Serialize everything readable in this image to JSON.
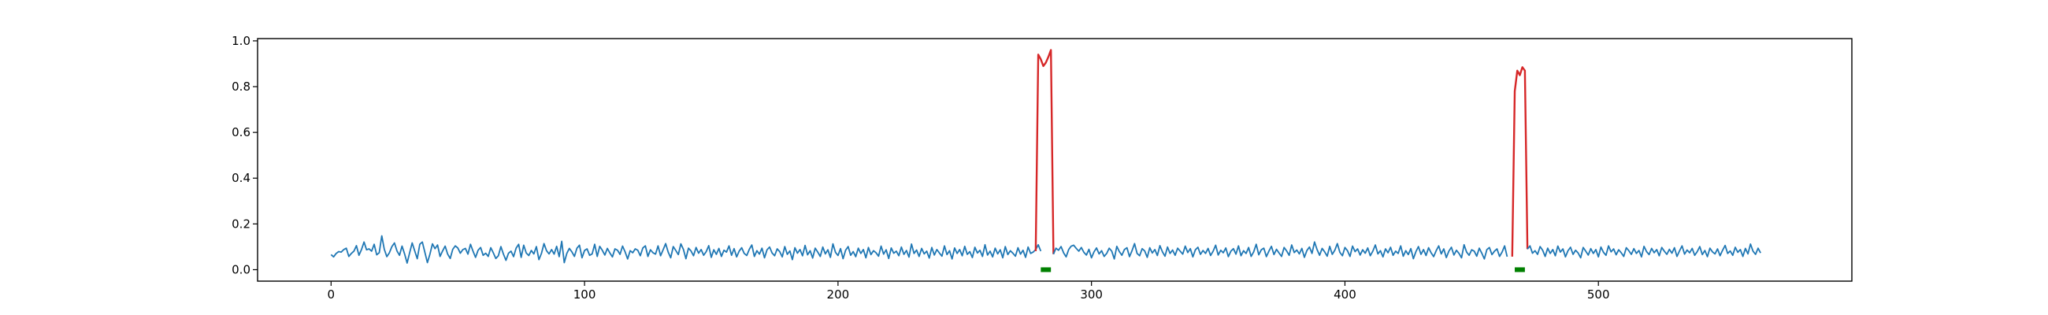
{
  "chart_data": {
    "type": "line",
    "title": "",
    "xlabel": "",
    "ylabel": "",
    "xlim": [
      -29,
      600
    ],
    "ylim": [
      -0.05,
      1.01
    ],
    "x_ticks": [
      0,
      100,
      200,
      300,
      400,
      500
    ],
    "x_tick_labels": [
      "0",
      "100",
      "200",
      "300",
      "400",
      "500"
    ],
    "y_ticks": [
      0.0,
      0.2,
      0.4,
      0.6,
      0.8,
      1.0
    ],
    "y_tick_labels": [
      "0.0",
      "0.2",
      "0.4",
      "0.6",
      "0.8",
      "1.0"
    ],
    "grid": false,
    "legend": "none",
    "series": [
      {
        "color": "#1f77b4",
        "style": "line",
        "x_start": 0,
        "x_step": 1,
        "values": [
          0.066,
          0.056,
          0.071,
          0.079,
          0.077,
          0.088,
          0.094,
          0.058,
          0.071,
          0.081,
          0.105,
          0.063,
          0.088,
          0.121,
          0.087,
          0.091,
          0.081,
          0.111,
          0.065,
          0.074,
          0.148,
          0.089,
          0.057,
          0.074,
          0.101,
          0.117,
          0.082,
          0.063,
          0.103,
          0.069,
          0.029,
          0.074,
          0.117,
          0.082,
          0.048,
          0.111,
          0.121,
          0.076,
          0.031,
          0.068,
          0.113,
          0.092,
          0.108,
          0.058,
          0.082,
          0.103,
          0.068,
          0.049,
          0.089,
          0.104,
          0.095,
          0.072,
          0.088,
          0.093,
          0.068,
          0.111,
          0.081,
          0.054,
          0.085,
          0.097,
          0.063,
          0.072,
          0.058,
          0.096,
          0.074,
          0.049,
          0.061,
          0.101,
          0.068,
          0.041,
          0.072,
          0.081,
          0.057,
          0.094,
          0.111,
          0.054,
          0.107,
          0.073,
          0.062,
          0.084,
          0.069,
          0.101,
          0.044,
          0.071,
          0.114,
          0.083,
          0.069,
          0.088,
          0.068,
          0.102,
          0.057,
          0.124,
          0.031,
          0.071,
          0.093,
          0.078,
          0.058,
          0.094,
          0.107,
          0.052,
          0.084,
          0.091,
          0.063,
          0.069,
          0.111,
          0.058,
          0.102,
          0.085,
          0.064,
          0.093,
          0.073,
          0.056,
          0.091,
          0.085,
          0.067,
          0.103,
          0.078,
          0.047,
          0.083,
          0.074,
          0.091,
          0.085,
          0.061,
          0.095,
          0.104,
          0.058,
          0.087,
          0.074,
          0.068,
          0.104,
          0.061,
          0.087,
          0.114,
          0.077,
          0.052,
          0.101,
          0.084,
          0.066,
          0.113,
          0.089,
          0.048,
          0.094,
          0.082,
          0.061,
          0.097,
          0.072,
          0.088,
          0.063,
          0.079,
          0.105,
          0.054,
          0.087,
          0.067,
          0.093,
          0.058,
          0.085,
          0.077,
          0.104,
          0.063,
          0.092,
          0.056,
          0.081,
          0.096,
          0.071,
          0.062,
          0.089,
          0.108,
          0.058,
          0.083,
          0.068,
          0.094,
          0.052,
          0.087,
          0.099,
          0.073,
          0.061,
          0.091,
          0.079,
          0.056,
          0.101,
          0.067,
          0.082,
          0.044,
          0.096,
          0.072,
          0.088,
          0.061,
          0.106,
          0.065,
          0.083,
          0.051,
          0.094,
          0.077,
          0.058,
          0.099,
          0.069,
          0.087,
          0.054,
          0.113,
          0.076,
          0.062,
          0.092,
          0.048,
          0.085,
          0.101,
          0.063,
          0.079,
          0.057,
          0.094,
          0.071,
          0.088,
          0.052,
          0.097,
          0.066,
          0.083,
          0.074,
          0.059,
          0.103,
          0.068,
          0.087,
          0.049,
          0.095,
          0.072,
          0.081,
          0.061,
          0.099,
          0.067,
          0.084,
          0.055,
          0.112,
          0.071,
          0.086,
          0.058,
          0.093,
          0.069,
          0.081,
          0.051,
          0.097,
          0.064,
          0.088,
          0.073,
          0.059,
          0.104,
          0.066,
          0.083,
          0.047,
          0.095,
          0.071,
          0.088,
          0.061,
          0.102,
          0.067,
          0.079,
          0.053,
          0.098,
          0.073,
          0.085,
          0.058,
          0.109,
          0.064,
          0.081,
          0.056,
          0.094,
          0.069,
          0.087,
          0.052,
          0.101,
          0.066,
          0.083,
          0.072,
          0.059,
          0.096,
          0.068,
          0.085,
          0.054,
          0.099,
          0.071,
          0.077,
          0.088,
          0.109,
          0.081
        ],
        "segment": "baseline"
      },
      {
        "color": "#d62728",
        "style": "line",
        "x_start": 278,
        "x_step": 1,
        "values": [
          0.081,
          0.94,
          0.92,
          0.89,
          0.905,
          0.93,
          0.96,
          0.068
        ],
        "segment": "spike"
      },
      {
        "color": "#1f77b4",
        "style": "line",
        "x_start": 285,
        "x_step": 1,
        "values": [
          0.068,
          0.094,
          0.085,
          0.101,
          0.074,
          0.056,
          0.088,
          0.103,
          0.107,
          0.093,
          0.081,
          0.097,
          0.076,
          0.064,
          0.089,
          0.052,
          0.078,
          0.095,
          0.069,
          0.083,
          0.058,
          0.071,
          0.094,
          0.081,
          0.047,
          0.102,
          0.079,
          0.063,
          0.088,
          0.096,
          0.057,
          0.083,
          0.114,
          0.071,
          0.061,
          0.092,
          0.082,
          0.054,
          0.096,
          0.073,
          0.088,
          0.062,
          0.105,
          0.078,
          0.059,
          0.099,
          0.071,
          0.086,
          0.063,
          0.094,
          0.081,
          0.068,
          0.103,
          0.075,
          0.092,
          0.056,
          0.087,
          0.098,
          0.067,
          0.084,
          0.071,
          0.093,
          0.062,
          0.081,
          0.107,
          0.064,
          0.085,
          0.074,
          0.095,
          0.057,
          0.081,
          0.092,
          0.068,
          0.104,
          0.061,
          0.083,
          0.071,
          0.097,
          0.058,
          0.078,
          0.111,
          0.065,
          0.087,
          0.094,
          0.057,
          0.081,
          0.102,
          0.066,
          0.089,
          0.073,
          0.058,
          0.097,
          0.082,
          0.063,
          0.108,
          0.075,
          0.086,
          0.069,
          0.093,
          0.054,
          0.084,
          0.099,
          0.071,
          0.121,
          0.088,
          0.063,
          0.093,
          0.078,
          0.059,
          0.102,
          0.067,
          0.085,
          0.114,
          0.076,
          0.061,
          0.097,
          0.083,
          0.058,
          0.103,
          0.079,
          0.091,
          0.064,
          0.087,
          0.072,
          0.095,
          0.061,
          0.081,
          0.108,
          0.069,
          0.083,
          0.056,
          0.091,
          0.074,
          0.098,
          0.063,
          0.081,
          0.071,
          0.104,
          0.059,
          0.083,
          0.066,
          0.092,
          0.048,
          0.079,
          0.101,
          0.067,
          0.088,
          0.062,
          0.096,
          0.074,
          0.057,
          0.083,
          0.104,
          0.069,
          0.091,
          0.053,
          0.081,
          0.098,
          0.064,
          0.085,
          0.071,
          0.052,
          0.109,
          0.077,
          0.063,
          0.087,
          0.081,
          0.059,
          0.094,
          0.072,
          0.047,
          0.088,
          0.097,
          0.066,
          0.081,
          0.091,
          0.058,
          0.077,
          0.104,
          0.057
        ],
        "segment": "baseline"
      },
      {
        "color": "#d62728",
        "style": "line",
        "x_start": 466,
        "x_step": 1,
        "values": [
          0.057,
          0.78,
          0.87,
          0.85,
          0.885,
          0.87,
          0.09
        ],
        "segment": "spike"
      },
      {
        "color": "#1f77b4",
        "style": "line",
        "x_start": 472,
        "x_step": 1,
        "values": [
          0.09,
          0.104,
          0.072,
          0.083,
          0.067,
          0.101,
          0.085,
          0.058,
          0.094,
          0.071,
          0.088,
          0.061,
          0.103,
          0.077,
          0.091,
          0.056,
          0.083,
          0.098,
          0.067,
          0.085,
          0.073,
          0.052,
          0.097,
          0.081,
          0.064,
          0.092,
          0.071,
          0.088,
          0.056,
          0.099,
          0.076,
          0.063,
          0.104,
          0.078,
          0.091,
          0.065,
          0.087,
          0.074,
          0.058,
          0.096,
          0.083,
          0.067,
          0.092,
          0.071,
          0.084,
          0.056,
          0.102,
          0.079,
          0.066,
          0.093,
          0.074,
          0.088,
          0.061,
          0.097,
          0.081,
          0.067,
          0.089,
          0.072,
          0.096,
          0.058,
          0.082,
          0.104,
          0.068,
          0.086,
          0.074,
          0.093,
          0.063,
          0.079,
          0.101,
          0.066,
          0.084,
          0.057,
          0.094,
          0.078,
          0.069,
          0.091,
          0.061,
          0.085,
          0.106,
          0.071,
          0.082,
          0.063,
          0.098,
          0.076,
          0.088,
          0.058,
          0.093,
          0.069,
          0.112,
          0.081,
          0.067,
          0.094,
          0.073
        ],
        "segment": "baseline"
      },
      {
        "color": "#008000",
        "style": "marker-segment",
        "x_start": 280,
        "x_step": 1,
        "values": [
          0.0,
          0.0,
          0.0,
          0.0,
          0.0
        ],
        "segment": "label"
      },
      {
        "color": "#008000",
        "style": "marker-segment",
        "x_start": 467,
        "x_step": 1,
        "values": [
          0.0,
          0.0,
          0.0,
          0.0,
          0.0
        ],
        "segment": "label"
      }
    ]
  }
}
